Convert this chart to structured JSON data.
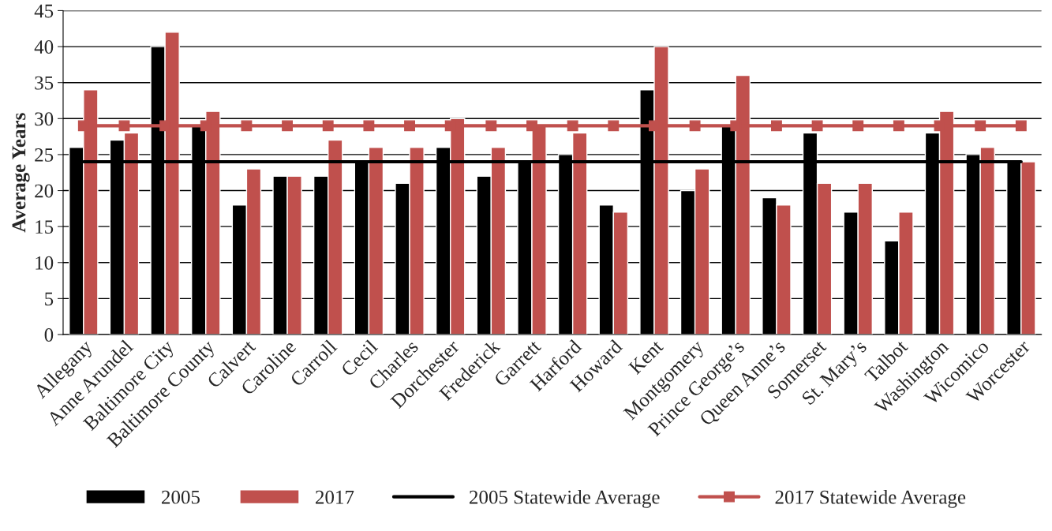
{
  "chart_data": {
    "type": "bar",
    "ylabel": "Average Years",
    "categories": [
      "Allegany",
      "Anne Arundel",
      "Baltimore City",
      "Baltimore County",
      "Calvert",
      "Caroline",
      "Carroll",
      "Cecil",
      "Charles",
      "Dorchester",
      "Frederick",
      "Garrett",
      "Harford",
      "Howard",
      "Kent",
      "Montgomery",
      "Prince George’s",
      "Queen Anne’s",
      "Somerset",
      "St. Mary’s",
      "Talbot",
      "Washington",
      "Wicomico",
      "Worcester"
    ],
    "series": [
      {
        "name": "2005",
        "color": "#000000",
        "values": [
          26,
          27,
          40,
          29,
          18,
          22,
          22,
          24,
          21,
          26,
          22,
          24,
          25,
          18,
          34,
          20,
          29,
          19,
          28,
          17,
          13,
          28,
          25,
          24
        ]
      },
      {
        "name": "2017",
        "color": "#c0504d",
        "values": [
          34,
          28,
          42,
          31,
          23,
          22,
          27,
          26,
          26,
          30,
          26,
          29,
          28,
          17,
          40,
          23,
          36,
          18,
          21,
          21,
          17,
          31,
          26,
          24
        ]
      },
      {
        "name": "2005 Statewide Average",
        "type": "line",
        "color": "#000000",
        "marker": "none",
        "values": [
          24,
          24,
          24,
          24,
          24,
          24,
          24,
          24,
          24,
          24,
          24,
          24,
          24,
          24,
          24,
          24,
          24,
          24,
          24,
          24,
          24,
          24,
          24,
          24
        ]
      },
      {
        "name": "2017 Statewide Average",
        "type": "line",
        "color": "#c0504d",
        "marker": "square",
        "values": [
          29,
          29,
          29,
          29,
          29,
          29,
          29,
          29,
          29,
          29,
          29,
          29,
          29,
          29,
          29,
          29,
          29,
          29,
          29,
          29,
          29,
          29,
          29,
          29
        ]
      }
    ],
    "ylim": [
      0,
      45
    ],
    "yticks": [
      0,
      5,
      10,
      15,
      20,
      25,
      30,
      35,
      40,
      45
    ],
    "grid": "y",
    "legend": "bottom"
  }
}
